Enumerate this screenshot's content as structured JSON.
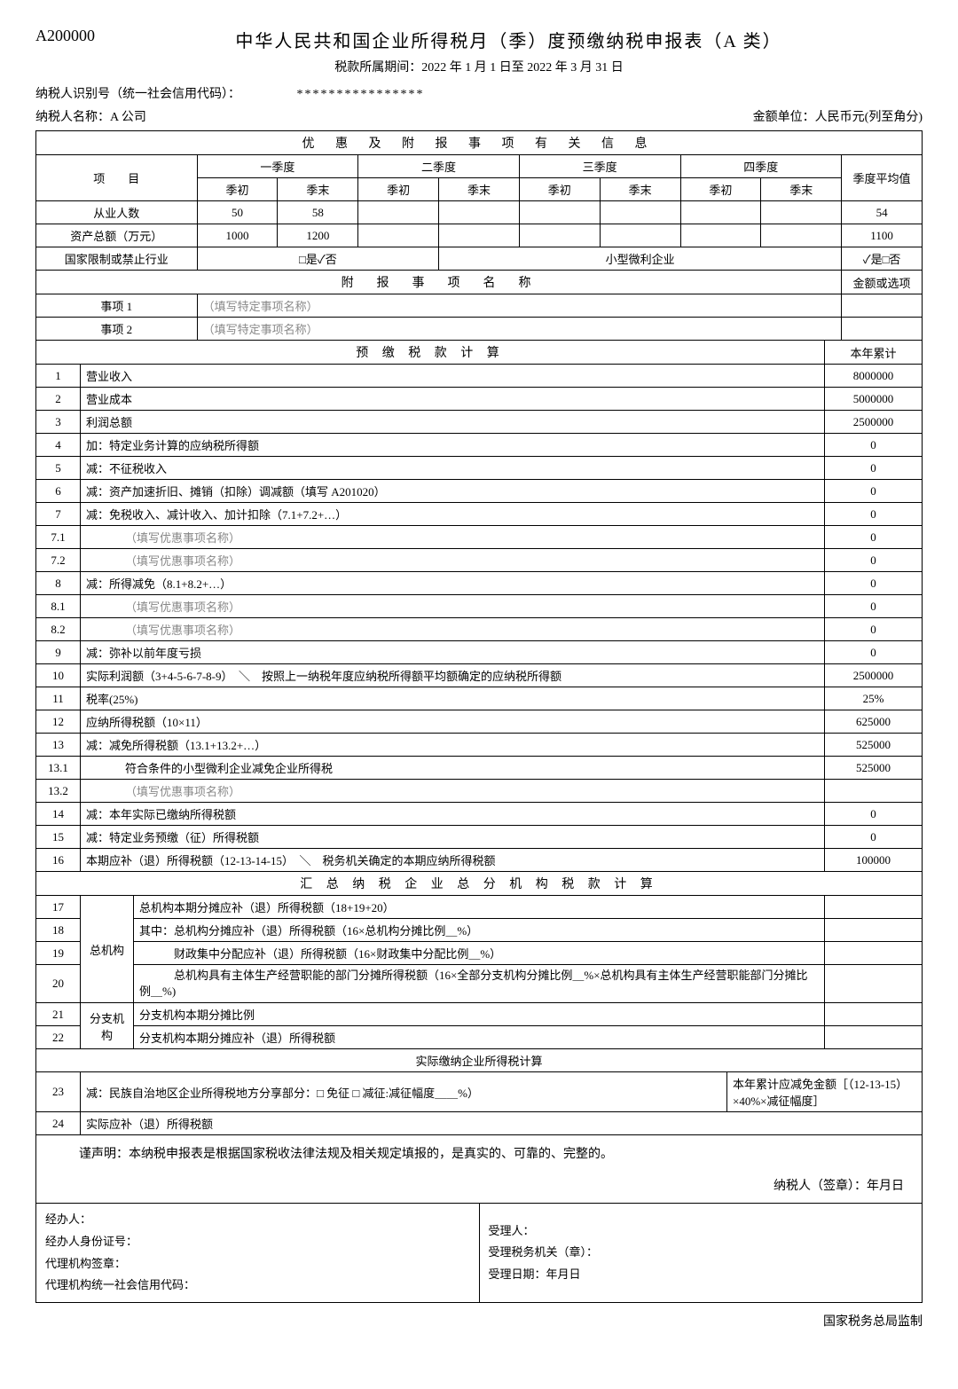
{
  "header": {
    "form_code": "A200000",
    "main_title": "中华人民共和国企业所得税月（季）度预缴纳税申报表（A 类）",
    "period": "税款所属期间：2022 年 1 月 1 日至 2022 年 3 月 31 日",
    "taxpayer_id_label": "纳税人识别号（统一社会信用代码）：",
    "taxpayer_id_value": "****************",
    "taxpayer_name_label": "纳税人名称：",
    "taxpayer_name_value": "A 公司",
    "unit_label": "金额单位：人民币元(列至角分)"
  },
  "sectionA": {
    "title": "优 惠 及 附 报 事 项 有 关 信 息",
    "item_label": "项　　目",
    "q1": "一季度",
    "q2": "二季度",
    "q3": "三季度",
    "q4": "四季度",
    "avg_label": "季度平均值",
    "qbeg": "季初",
    "qend": "季末",
    "row1_label": "从业人数",
    "row1_qb": "50",
    "row1_qe": "58",
    "row1_avg": "54",
    "row2_label": "资产总额（万元）",
    "row2_qb": "1000",
    "row2_qe": "1200",
    "row2_avg": "1100",
    "row3_label": "国家限制或禁止行业",
    "row3_opt": "□是✓否",
    "row3_small_label": "小型微利企业",
    "row3_small_opt": "✓是□否",
    "attach_title": "附　报　事　项　名　称",
    "attach_amount": "金额或选项",
    "item1_label": "事项 1",
    "item1_val": "（填写特定事项名称）",
    "item2_label": "事项 2",
    "item2_val": "（填写特定事项名称）"
  },
  "sectionB": {
    "title": "预 缴 税 款 计 算",
    "col_label": "本年累计",
    "rows": [
      {
        "n": "1",
        "label": "营业收入",
        "v": "8000000"
      },
      {
        "n": "2",
        "label": "营业成本",
        "v": "5000000"
      },
      {
        "n": "3",
        "label": "利润总额",
        "v": "2500000"
      },
      {
        "n": "4",
        "label": "加：特定业务计算的应纳税所得额",
        "v": "0"
      },
      {
        "n": "5",
        "label": "减：不征税收入",
        "v": "0"
      },
      {
        "n": "6",
        "label": "减：资产加速折旧、摊销（扣除）调减额（填写 A201020）",
        "v": "0"
      },
      {
        "n": "7",
        "label": "减：免税收入、减计收入、加计扣除（7.1+7.2+…）",
        "v": "0"
      },
      {
        "n": "7.1",
        "label": "（填写优惠事项名称）",
        "v": "0",
        "gray": true,
        "indent": 2
      },
      {
        "n": "7.2",
        "label": "（填写优惠事项名称）",
        "v": "0",
        "gray": true,
        "indent": 2
      },
      {
        "n": "8",
        "label": "减：所得减免（8.1+8.2+…）",
        "v": "0"
      },
      {
        "n": "8.1",
        "label": "（填写优惠事项名称）",
        "v": "0",
        "gray": true,
        "indent": 2
      },
      {
        "n": "8.2",
        "label": "（填写优惠事项名称）",
        "v": "0",
        "gray": true,
        "indent": 2
      },
      {
        "n": "9",
        "label": "减：弥补以前年度亏损",
        "v": "0"
      },
      {
        "n": "10",
        "label": "实际利润额（3+4-5-6-7-8-9）　＼　按照上一纳税年度应纳税所得额平均额确定的应纳税所得额",
        "v": "2500000"
      },
      {
        "n": "11",
        "label": "税率(25%)",
        "v": "25%"
      },
      {
        "n": "12",
        "label": "应纳所得税额（10×11）",
        "v": "625000"
      },
      {
        "n": "13",
        "label": "减：减免所得税额（13.1+13.2+…）",
        "v": "525000"
      },
      {
        "n": "13.1",
        "label": "符合条件的小型微利企业减免企业所得税",
        "v": "525000",
        "indent": 2
      },
      {
        "n": "13.2",
        "label": "（填写优惠事项名称）",
        "v": "",
        "gray": true,
        "indent": 2
      },
      {
        "n": "14",
        "label": "减：本年实际已缴纳所得税额",
        "v": "0"
      },
      {
        "n": "15",
        "label": "减：特定业务预缴（征）所得税额",
        "v": "0"
      },
      {
        "n": "16",
        "label": "本期应补（退）所得税额（12-13-14-15）　＼　税务机关确定的本期应纳所得税额",
        "v": "100000"
      }
    ]
  },
  "sectionC": {
    "title": "汇 总 纳 税 企 业 总 分 机 构 税 款 计 算",
    "hq_label": "总机构",
    "branch_label": "分支机构",
    "r17": {
      "n": "17",
      "label": "总机构本期分摊应补（退）所得税额（18+19+20）"
    },
    "r18": {
      "n": "18",
      "label": "其中：总机构分摊应补（退）所得税额（16×总机构分摊比例＿%）"
    },
    "r19": {
      "n": "19",
      "label": "　　　财政集中分配应补（退）所得税额（16×财政集中分配比例＿%）"
    },
    "r20": {
      "n": "20",
      "label": "　　　总机构具有主体生产经营职能的部门分摊所得税额（16×全部分支机构分摊比例＿%×总机构具有主体生产经营职能部门分摊比例＿%)"
    },
    "r21": {
      "n": "21",
      "label": "分支机构本期分摊比例"
    },
    "r22": {
      "n": "22",
      "label": "分支机构本期分摊应补（退）所得税额"
    }
  },
  "sectionD": {
    "title": "实际缴纳企业所得税计算",
    "r23": {
      "n": "23",
      "label": "减：民族自治地区企业所得税地方分享部分：□ 免征 □ 减征:减征幅度＿＿%）",
      "right": "本年累计应减免金额［（12-13-15）×40%×减征幅度］"
    },
    "r24": {
      "n": "24",
      "label": "实际应补（退）所得税额"
    }
  },
  "declaration": {
    "text": "谨声明：本纳税申报表是根据国家税收法律法规及相关规定填报的，是真实的、可靠的、完整的。",
    "sign": "纳税人（签章）：年月日"
  },
  "footer": {
    "l1": "经办人：",
    "l2": "经办人身份证号：",
    "l3": "代理机构签章：",
    "l4": "代理机构统一社会信用代码：",
    "r1": "受理人：",
    "r2": "受理税务机关（章）：",
    "r3": "受理日期：年月日",
    "supervise": "国家税务总局监制"
  }
}
